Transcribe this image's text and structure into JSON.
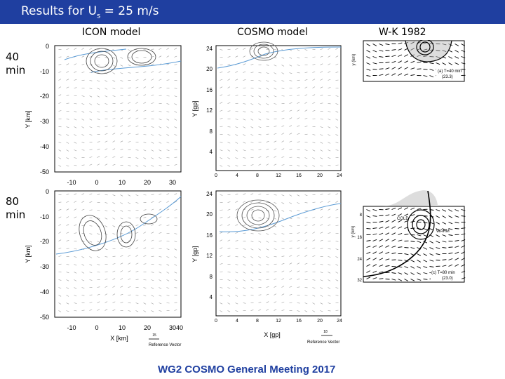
{
  "header": {
    "title_prefix": "Results for U",
    "title_sub": "s",
    "title_suffix": " = 25 m/s"
  },
  "columns": {
    "icon": "ICON model",
    "cosmo": "COSMO model",
    "wk": "W-K 1982"
  },
  "rows": {
    "r1_line1": "40",
    "r1_line2": "min",
    "r2_line1": "80",
    "r2_line2": "min"
  },
  "icon_axes": {
    "yticks": [
      "0",
      "-10",
      "-20",
      "-30",
      "-40",
      "-50"
    ],
    "xticks": [
      "-10",
      "0",
      "10",
      "20",
      "30"
    ],
    "xticks_bottom": [
      "-10",
      "0",
      "10",
      "20",
      "30",
      "40"
    ],
    "ylabel": "Y [km]",
    "xlabel": "X [km]",
    "ref_value": "15",
    "ref_label": "Reference Vector"
  },
  "cosmo_axes": {
    "yticks": [
      "24",
      "20",
      "16",
      "12",
      "8",
      "4"
    ],
    "xticks": [
      "0",
      "4",
      "8",
      "12",
      "16",
      "20",
      "24"
    ],
    "ylabel": "Y [gp]",
    "xlabel": "X [gp]",
    "ref_value": "18",
    "ref_label": "Reference Vector"
  },
  "wk": {
    "top_ylabel": "y (km)",
    "top_caption_1": "(a) T=40 min",
    "top_caption_2": "(23.3)",
    "bot_ylabel": "y (km)",
    "bot_cold": "COLD",
    "bot_warm": "WARM",
    "bot_caption_1": "(c) T=80 min",
    "bot_caption_2": "(23.0)",
    "bot_yticks": [
      "8",
      "16",
      "24",
      "32"
    ]
  },
  "footer": {
    "text": "WG2 COSMO General Meeting 2017"
  },
  "colors": {
    "header_bg": "#1f3fa0",
    "contour_blue": "#5b9bd5",
    "footer_text": "#1f3fa0"
  }
}
